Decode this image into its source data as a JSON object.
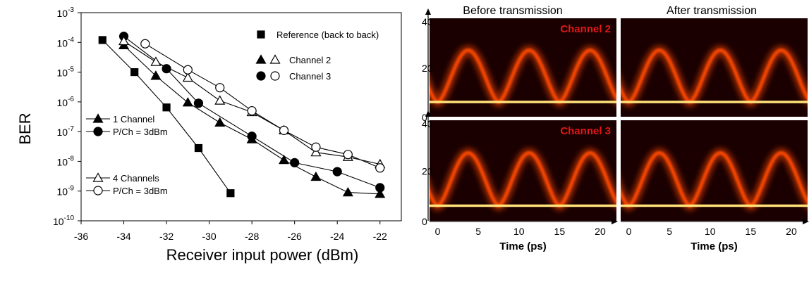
{
  "chart_data": [
    {
      "type": "line",
      "title": "",
      "xlabel": "Receiver input power (dBm)",
      "ylabel": "BER",
      "xlim": [
        -36,
        -21
      ],
      "x_ticks": [
        "-36",
        "-34",
        "-32",
        "-30",
        "-28",
        "-26",
        "-24",
        "-22"
      ],
      "ylim_exp": [
        -10,
        -3
      ],
      "y_ticks": [
        {
          "base": "10",
          "exp": "-3"
        },
        {
          "base": "10",
          "exp": "-4"
        },
        {
          "base": "10",
          "exp": "-5"
        },
        {
          "base": "10",
          "exp": "-6"
        },
        {
          "base": "10",
          "exp": "-7"
        },
        {
          "base": "10",
          "exp": "-8"
        },
        {
          "base": "10",
          "exp": "-9"
        },
        {
          "base": "10",
          "exp": "-10"
        }
      ],
      "y_scale": "log",
      "grid": false,
      "legend_top": [
        {
          "marker": "square-filled",
          "label": "Reference (back to back)"
        },
        {
          "marker": "triangle-both",
          "label": "Channel 2"
        },
        {
          "marker": "circle-both",
          "label": "Channel 3"
        }
      ],
      "legend_bottom": [
        {
          "group": "single",
          "lines": [
            "1 Channel",
            "P/Ch = 3dBm"
          ]
        },
        {
          "group": "four",
          "lines": [
            "4 Channels",
            "P/Ch = 3dBm"
          ]
        }
      ],
      "series": [
        {
          "marker": "square",
          "filled": true,
          "points": [
            [
              -35,
              0.00012
            ],
            [
              -33.5,
              1e-05
            ],
            [
              -32,
              6.5e-07
            ],
            [
              -30.5,
              2.8e-08
            ],
            [
              -29,
              8.5e-10
            ]
          ]
        },
        {
          "marker": "triangle",
          "filled": true,
          "points": [
            [
              -34,
              8e-05
            ],
            [
              -32.5,
              7.5e-06
            ],
            [
              -31,
              9.5e-07
            ],
            [
              -29.5,
              2e-07
            ],
            [
              -28,
              5.5e-08
            ],
            [
              -26.5,
              1.1e-08
            ],
            [
              -25,
              3e-09
            ],
            [
              -23.5,
              9e-10
            ],
            [
              -22,
              8e-10
            ]
          ]
        },
        {
          "marker": "circle",
          "filled": true,
          "points": [
            [
              -34,
              0.00016
            ],
            [
              -32,
              1.3e-05
            ],
            [
              -30.5,
              9e-07
            ],
            [
              -28,
              7e-08
            ],
            [
              -26,
              9e-09
            ],
            [
              -24,
              4.5e-09
            ],
            [
              -22,
              1.3e-09
            ]
          ]
        },
        {
          "marker": "triangle",
          "filled": false,
          "points": [
            [
              -34,
              0.00011
            ],
            [
              -32.5,
              2.2e-05
            ],
            [
              -31,
              6.5e-06
            ],
            [
              -29.5,
              1.1e-06
            ],
            [
              -28,
              4.5e-07
            ],
            [
              -26.5,
              1.1e-07
            ],
            [
              -25,
              2e-08
            ],
            [
              -23.5,
              1.4e-08
            ],
            [
              -22,
              8e-09
            ]
          ]
        },
        {
          "marker": "circle",
          "filled": false,
          "points": [
            [
              -33,
              9e-05
            ],
            [
              -31,
              1.2e-05
            ],
            [
              -29.5,
              3e-06
            ],
            [
              -28,
              5e-07
            ],
            [
              -26.5,
              1.1e-07
            ],
            [
              -25,
              3e-08
            ],
            [
              -23.5,
              1.7e-08
            ],
            [
              -22,
              6e-09
            ]
          ]
        }
      ]
    },
    {
      "type": "heatmap",
      "titles": [
        "Before transmission",
        "After transmission"
      ],
      "row_labels": [
        "Channel 2",
        "Channel 3"
      ],
      "y_ticks": [
        "40",
        "20",
        "0"
      ],
      "ylim": [
        0,
        40
      ],
      "x_ticks": [
        "0",
        "5",
        "10",
        "15",
        "20"
      ],
      "xlim": [
        -1,
        22
      ],
      "xlabel": "Time (ps)",
      "eye_peaks_ps": [
        0,
        7.5,
        15,
        22.5
      ],
      "eye_level_low": 6,
      "eye_level_high": 27,
      "colors": {
        "background": "#1a0000",
        "trace": "#ff4a00",
        "trace_core": "#ffe27a"
      }
    }
  ]
}
